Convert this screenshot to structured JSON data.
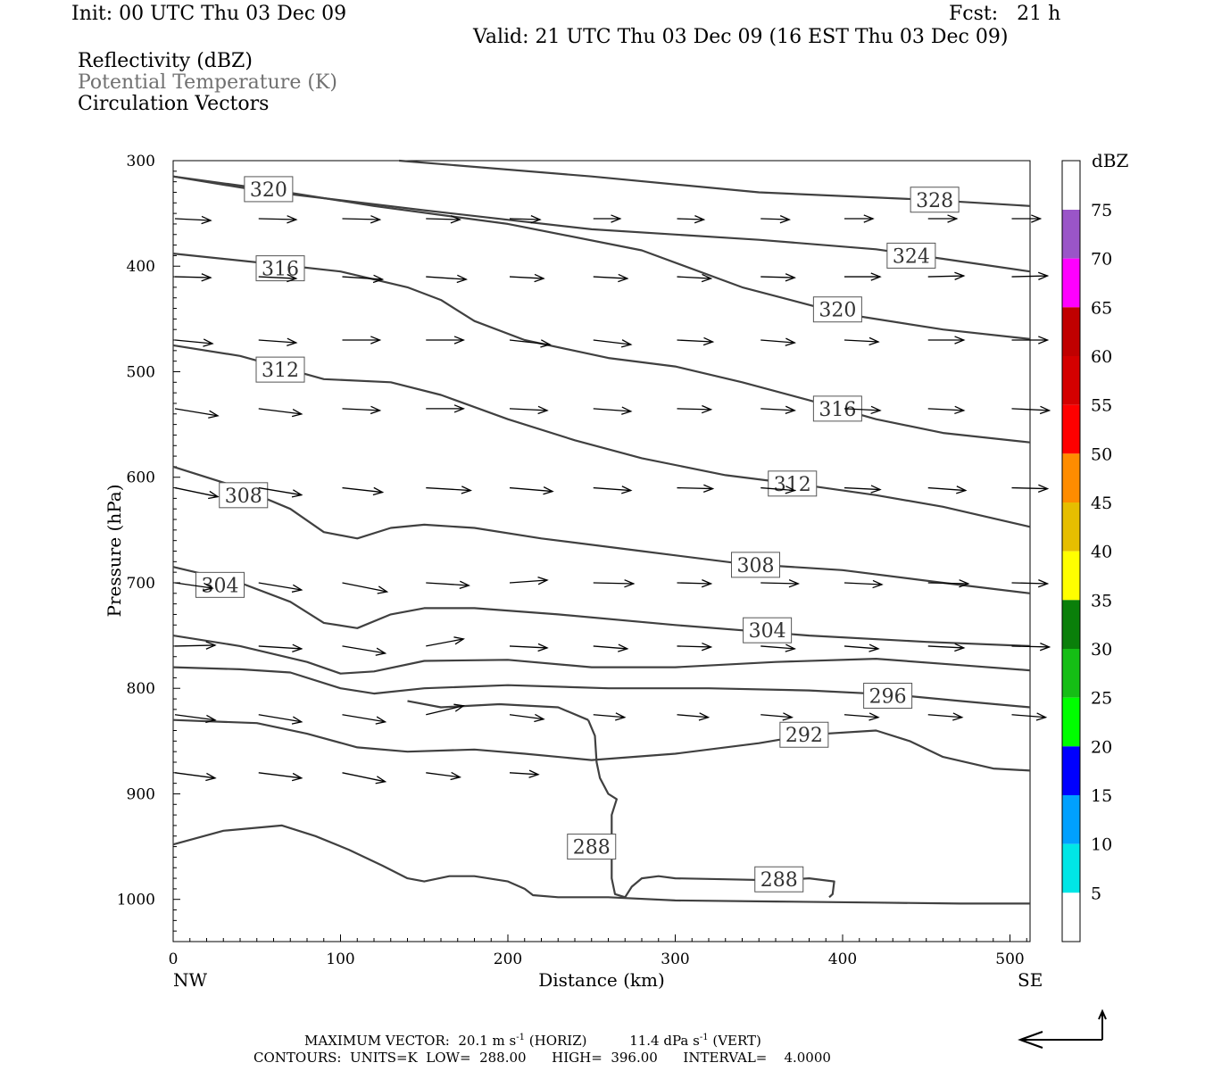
{
  "header": {
    "init": "Init: 00 UTC Thu 03 Dec 09",
    "fcst": "Fcst:   21 h",
    "valid": "Valid: 21 UTC Thu 03 Dec 09 (16 EST Thu 03 Dec 09)",
    "field1": "Reflectivity (dBZ)",
    "field2": "Potential Temperature (K)",
    "field3": "Circulation Vectors"
  },
  "footer": {
    "line1_label": "MAXIMUM VECTOR:",
    "line1_horiz": "20.1 m s",
    "line1_horiz_unit": "(HORIZ)",
    "line1_vert": "11.4 dPa s",
    "line1_vert_unit": "(VERT)",
    "exp": "-1",
    "line2": "CONTOURS:  UNITS=K  LOW=  288.00      HIGH=  396.00      INTERVAL=    4.0000"
  },
  "chart_data": {
    "type": "cross-section",
    "xlabel": "Distance (km)",
    "ylabel": "Pressure (hPa)",
    "xlim": [
      0,
      512
    ],
    "ylim": [
      1040,
      300
    ],
    "x_ticks": [
      "0",
      "100",
      "200",
      "300",
      "400",
      "500"
    ],
    "x_tick_values": [
      0,
      100,
      200,
      300,
      400,
      500
    ],
    "y_ticks": [
      "300",
      "400",
      "500",
      "600",
      "700",
      "800",
      "900",
      "1000"
    ],
    "y_tick_values": [
      300,
      400,
      500,
      600,
      700,
      800,
      900,
      1000
    ],
    "left_end_label": "NW",
    "right_end_label": "SE",
    "contour_color": "#404040",
    "contours": [
      {
        "value": 328,
        "points": [
          [
            135,
            300
          ],
          [
            250,
            315
          ],
          [
            350,
            330
          ],
          [
            450,
            337
          ],
          [
            512,
            343
          ]
        ],
        "labels": [
          {
            "text": "328",
            "x": 455,
            "p": 337
          }
        ]
      },
      {
        "value": 324,
        "points": [
          [
            0,
            315
          ],
          [
            50,
            328
          ],
          [
            150,
            347
          ],
          [
            250,
            365
          ],
          [
            350,
            375
          ],
          [
            420,
            384
          ],
          [
            460,
            393
          ],
          [
            512,
            405
          ]
        ],
        "labels": [
          {
            "text": "324",
            "x": 441,
            "p": 390
          }
        ]
      },
      {
        "value": 320,
        "points": [
          [
            0,
            315
          ],
          [
            60,
            328
          ],
          [
            120,
            343
          ],
          [
            200,
            360
          ],
          [
            280,
            385
          ],
          [
            340,
            420
          ],
          [
            400,
            445
          ],
          [
            460,
            460
          ],
          [
            512,
            469
          ]
        ],
        "labels": [
          {
            "text": "320",
            "x": 57,
            "p": 327
          },
          {
            "text": "320",
            "x": 397,
            "p": 441
          }
        ]
      },
      {
        "value": 316,
        "points": [
          [
            0,
            388
          ],
          [
            60,
            398
          ],
          [
            100,
            405
          ],
          [
            140,
            420
          ],
          [
            160,
            432
          ],
          [
            180,
            452
          ],
          [
            210,
            470
          ],
          [
            260,
            487
          ],
          [
            300,
            495
          ],
          [
            340,
            510
          ],
          [
            380,
            527
          ],
          [
            420,
            545
          ],
          [
            460,
            558
          ],
          [
            512,
            567
          ]
        ],
        "labels": [
          {
            "text": "316",
            "x": 64,
            "p": 402
          },
          {
            "text": "316",
            "x": 397,
            "p": 535
          }
        ]
      },
      {
        "value": 312,
        "points": [
          [
            0,
            475
          ],
          [
            40,
            485
          ],
          [
            90,
            507
          ],
          [
            130,
            510
          ],
          [
            160,
            522
          ],
          [
            200,
            545
          ],
          [
            240,
            565
          ],
          [
            280,
            582
          ],
          [
            330,
            598
          ],
          [
            380,
            608
          ],
          [
            420,
            617
          ],
          [
            460,
            628
          ],
          [
            512,
            647
          ]
        ],
        "labels": [
          {
            "text": "312",
            "x": 64,
            "p": 498
          },
          {
            "text": "312",
            "x": 370,
            "p": 606
          }
        ]
      },
      {
        "value": 308,
        "points": [
          [
            0,
            590
          ],
          [
            40,
            610
          ],
          [
            70,
            630
          ],
          [
            90,
            652
          ],
          [
            110,
            658
          ],
          [
            130,
            648
          ],
          [
            150,
            645
          ],
          [
            180,
            648
          ],
          [
            220,
            658
          ],
          [
            280,
            670
          ],
          [
            340,
            682
          ],
          [
            400,
            688
          ],
          [
            460,
            700
          ],
          [
            512,
            710
          ]
        ],
        "labels": [
          {
            "text": "308",
            "x": 42,
            "p": 617
          },
          {
            "text": "308",
            "x": 348,
            "p": 683
          }
        ]
      },
      {
        "value": 304,
        "points": [
          [
            0,
            685
          ],
          [
            40,
            700
          ],
          [
            70,
            718
          ],
          [
            90,
            738
          ],
          [
            110,
            743
          ],
          [
            130,
            730
          ],
          [
            150,
            724
          ],
          [
            180,
            724
          ],
          [
            230,
            730
          ],
          [
            300,
            740
          ],
          [
            380,
            750
          ],
          [
            450,
            756
          ],
          [
            512,
            760
          ]
        ],
        "labels": [
          {
            "text": "304",
            "x": 28,
            "p": 702
          },
          {
            "text": "304",
            "x": 355,
            "p": 745
          }
        ]
      },
      {
        "value": 300,
        "points": [
          [
            0,
            750
          ],
          [
            40,
            760
          ],
          [
            80,
            775
          ],
          [
            100,
            786
          ],
          [
            120,
            784
          ],
          [
            150,
            774
          ],
          [
            200,
            773
          ],
          [
            250,
            780
          ],
          [
            300,
            780
          ],
          [
            360,
            775
          ],
          [
            420,
            772
          ],
          [
            470,
            778
          ],
          [
            512,
            783
          ]
        ],
        "labels": []
      },
      {
        "value": 296,
        "points": [
          [
            0,
            780
          ],
          [
            40,
            782
          ],
          [
            70,
            785
          ],
          [
            100,
            800
          ],
          [
            120,
            805
          ],
          [
            150,
            800
          ],
          [
            200,
            797
          ],
          [
            260,
            800
          ],
          [
            320,
            800
          ],
          [
            380,
            802
          ],
          [
            430,
            806
          ],
          [
            470,
            812
          ],
          [
            512,
            818
          ]
        ],
        "labels": [
          {
            "text": "296",
            "x": 427,
            "p": 807
          }
        ]
      },
      {
        "value": 292,
        "points": [
          [
            0,
            830
          ],
          [
            50,
            833
          ],
          [
            80,
            843
          ],
          [
            110,
            856
          ],
          [
            140,
            860
          ],
          [
            180,
            858
          ],
          [
            210,
            862
          ],
          [
            250,
            868
          ],
          [
            300,
            862
          ],
          [
            350,
            852
          ],
          [
            380,
            844
          ],
          [
            420,
            840
          ],
          [
            440,
            850
          ],
          [
            460,
            865
          ],
          [
            490,
            876
          ],
          [
            512,
            878
          ]
        ],
        "labels": [
          {
            "text": "292",
            "x": 377,
            "p": 844
          }
        ]
      },
      {
        "value": 288,
        "points": [
          [
            0,
            948
          ],
          [
            30,
            935
          ],
          [
            65,
            930
          ],
          [
            85,
            940
          ],
          [
            105,
            953
          ],
          [
            125,
            968
          ],
          [
            140,
            980
          ],
          [
            150,
            983
          ],
          [
            165,
            978
          ],
          [
            180,
            978
          ],
          [
            200,
            983
          ],
          [
            210,
            990
          ],
          [
            215,
            996
          ],
          [
            230,
            998
          ],
          [
            245,
            998
          ],
          [
            260,
            998
          ],
          [
            300,
            1001
          ],
          [
            360,
            1002
          ],
          [
            420,
            1003
          ],
          [
            470,
            1004
          ],
          [
            512,
            1004
          ]
        ],
        "labels": [
          {
            "text": "288",
            "x": 250,
            "p": 950
          }
        ]
      },
      {
        "value": 288,
        "points": [
          [
            248,
            830
          ],
          [
            230,
            818
          ],
          [
            195,
            815
          ],
          [
            160,
            818
          ],
          [
            140,
            812
          ]
        ],
        "labels": []
      },
      {
        "value": 288,
        "points": [
          [
            248,
            830
          ],
          [
            252,
            845
          ],
          [
            253,
            870
          ],
          [
            255,
            885
          ],
          [
            260,
            900
          ],
          [
            265,
            905
          ],
          [
            262,
            920
          ],
          [
            262,
            950
          ],
          [
            262,
            980
          ],
          [
            264,
            995
          ],
          [
            270,
            998
          ]
        ],
        "labels": []
      },
      {
        "value": 288,
        "points": [
          [
            270,
            998
          ],
          [
            274,
            988
          ],
          [
            280,
            980
          ],
          [
            290,
            978
          ],
          [
            300,
            980
          ],
          [
            330,
            981
          ],
          [
            360,
            982
          ],
          [
            380,
            980
          ],
          [
            395,
            983
          ],
          [
            394,
            995
          ],
          [
            392,
            998
          ]
        ],
        "labels": [
          {
            "text": "288",
            "x": 362,
            "p": 981
          }
        ]
      }
    ],
    "vectors": {
      "columns": [
        0,
        50,
        100,
        150,
        200,
        250,
        300,
        350,
        400,
        450,
        500
      ],
      "rows": [
        {
          "p": 355,
          "u": [
            40,
            42,
            42,
            38,
            34,
            30,
            30,
            32,
            32,
            32,
            32
          ],
          "w": [
            2,
            1,
            1,
            1,
            1,
            0,
            1,
            1,
            0,
            0,
            0
          ]
        },
        {
          "p": 410,
          "u": [
            40,
            42,
            45,
            45,
            38,
            38,
            38,
            38,
            40,
            40,
            40
          ],
          "w": [
            1,
            2,
            3,
            3,
            2,
            2,
            2,
            1,
            0,
            -1,
            -1
          ]
        },
        {
          "p": 470,
          "u": [
            42,
            42,
            42,
            42,
            45,
            42,
            40,
            38,
            38,
            40,
            40
          ],
          "w": [
            4,
            3,
            0,
            0,
            5,
            5,
            2,
            3,
            2,
            0,
            0
          ]
        },
        {
          "p": 535,
          "u": [
            48,
            48,
            42,
            42,
            42,
            42,
            38,
            38,
            40,
            40,
            42
          ],
          "w": [
            8,
            6,
            2,
            0,
            2,
            3,
            1,
            2,
            2,
            2,
            2
          ]
        },
        {
          "p": 610,
          "u": [
            48,
            48,
            45,
            50,
            48,
            42,
            40,
            38,
            40,
            42,
            40
          ],
          "w": [
            10,
            8,
            5,
            3,
            4,
            3,
            1,
            3,
            2,
            3,
            1
          ]
        },
        {
          "p": 700,
          "u": [
            42,
            48,
            50,
            48,
            42,
            45,
            38,
            42,
            42,
            45,
            40
          ],
          "w": [
            6,
            8,
            10,
            3,
            -3,
            1,
            1,
            1,
            2,
            1,
            1
          ]
        },
        {
          "p": 760,
          "u": [
            45,
            48,
            48,
            42,
            42,
            38,
            38,
            38,
            38,
            40,
            42
          ],
          "w": [
            -1,
            3,
            8,
            -8,
            2,
            3,
            1,
            3,
            3,
            2,
            1
          ]
        },
        {
          "p": 825,
          "u": [
            45,
            48,
            48,
            42,
            38,
            35,
            35,
            35,
            38,
            38,
            38
          ],
          "w": [
            6,
            8,
            8,
            -10,
            5,
            3,
            3,
            3,
            3,
            3,
            3
          ]
        },
        {
          "p": 880,
          "u": [
            45,
            48,
            48,
            38,
            32,
            0,
            0,
            0,
            0,
            0,
            0
          ],
          "w": [
            6,
            6,
            10,
            5,
            2,
            0,
            0,
            0,
            0,
            0,
            0
          ]
        }
      ]
    },
    "colorbar": {
      "title": "dBZ",
      "labels": [
        "75",
        "70",
        "65",
        "60",
        "55",
        "50",
        "45",
        "40",
        "35",
        "30",
        "25",
        "20",
        "15",
        "10",
        "5"
      ],
      "colors": [
        "#ffffff",
        "#9a55c8",
        "#ff00ff",
        "#c00000",
        "#d40000",
        "#ff0000",
        "#ff8c00",
        "#e6be00",
        "#ffff00",
        "#0a7f0a",
        "#15be15",
        "#00ff00",
        "#0000ff",
        "#00a0ff",
        "#00e6e6",
        "#ffffff"
      ]
    }
  }
}
